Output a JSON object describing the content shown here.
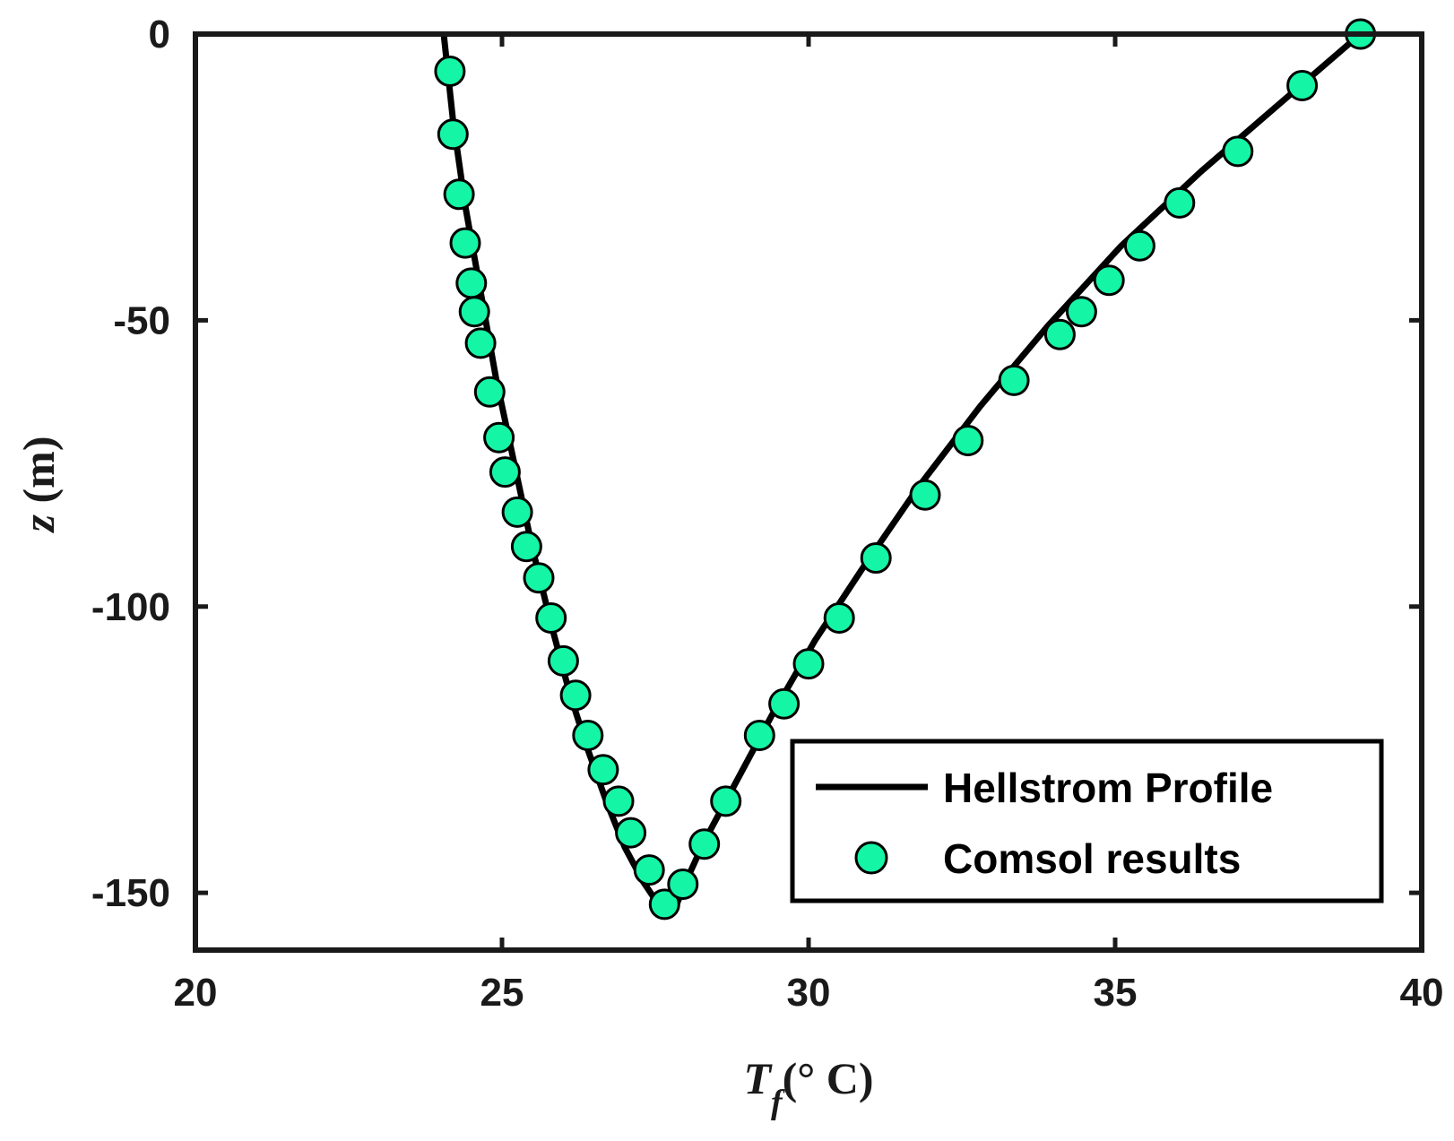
{
  "colors": {
    "marker_fill": "#14f5a6",
    "line": "#000000",
    "axes": "#1a1a1a"
  },
  "chart_data": {
    "type": "line",
    "title": "",
    "xlabel": {
      "main": "T",
      "sub": "f",
      "unit": "(° C)"
    },
    "ylabel": {
      "var": "z",
      "unit": " (m)"
    },
    "xlim": [
      20,
      40
    ],
    "ylim": [
      -160,
      0
    ],
    "xticks": [
      20,
      25,
      30,
      35,
      40
    ],
    "yticks": [
      0,
      -50,
      -100,
      -150
    ],
    "legend": {
      "placement": "bottom-right",
      "entries": [
        "Hellstrom Profile",
        "Comsol results"
      ]
    },
    "series": [
      {
        "name": "Hellstrom Profile",
        "style": "line",
        "x": [
          24.05,
          24.2,
          24.4,
          24.65,
          24.9,
          25.2,
          25.5,
          25.8,
          26.1,
          26.4,
          26.7,
          27.0,
          27.3,
          27.55,
          27.7,
          27.85,
          28.0,
          28.3,
          28.8,
          29.4,
          30.1,
          30.9,
          31.8,
          32.8,
          33.9,
          35.1,
          36.4,
          37.7,
          39.0
        ],
        "y": [
          0,
          -15,
          -30,
          -45,
          -60,
          -75,
          -90,
          -103,
          -115,
          -125,
          -134,
          -142,
          -148,
          -152,
          -154,
          -152,
          -148,
          -141,
          -131,
          -119,
          -106,
          -93,
          -79,
          -65,
          -51,
          -37,
          -24,
          -12,
          0
        ]
      },
      {
        "name": "Comsol results",
        "style": "markers",
        "x": [
          24.15,
          24.2,
          24.3,
          24.4,
          24.5,
          24.55,
          24.65,
          24.8,
          24.95,
          25.05,
          25.25,
          25.4,
          25.6,
          25.8,
          26.0,
          26.2,
          26.4,
          26.65,
          26.9,
          27.1,
          27.4,
          27.65,
          27.95,
          28.3,
          28.65,
          29.2,
          29.6,
          30.0,
          30.5,
          31.1,
          31.9,
          32.6,
          33.35,
          34.1,
          34.45,
          34.9,
          35.4,
          36.05,
          37.0,
          38.05,
          39.0
        ],
        "y": [
          -6.5,
          -17.5,
          -28,
          -36.5,
          -43.5,
          -48.5,
          -54,
          -62.5,
          -70.5,
          -76.5,
          -83.5,
          -89.5,
          -95,
          -102,
          -109.5,
          -115.5,
          -122.5,
          -128.5,
          -134,
          -139.5,
          -146,
          -152,
          -148.5,
          -141.5,
          -134,
          -122.5,
          -117,
          -110,
          -102,
          -91.5,
          -80.5,
          -71,
          -60.5,
          -52.5,
          -48.5,
          -43,
          -37,
          -29.5,
          -20.5,
          -9,
          0
        ]
      }
    ]
  }
}
